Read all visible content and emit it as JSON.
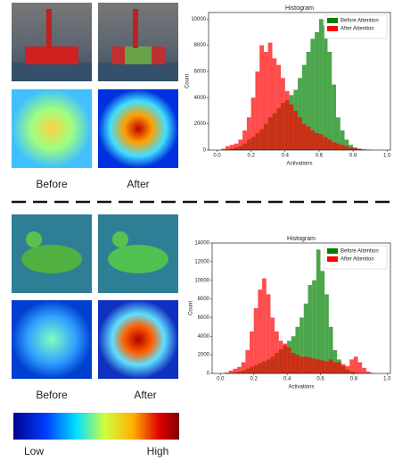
{
  "chart_data": [
    {
      "type": "histogram",
      "title": "Histogram",
      "x_label": "Activations",
      "y_label": "Count",
      "bins": [
        0,
        0.025,
        0.05,
        0.075,
        0.1,
        0.125,
        0.15,
        0.175,
        0.2,
        0.225,
        0.25,
        0.275,
        0.3,
        0.325,
        0.35,
        0.375,
        0.4,
        0.425,
        0.45,
        0.475,
        0.5,
        0.525,
        0.55,
        0.575,
        0.6,
        0.625,
        0.65,
        0.675,
        0.7,
        0.725,
        0.75,
        0.775,
        0.8,
        0.825,
        0.85,
        0.875,
        0.9,
        0.925,
        0.95,
        0.975,
        1
      ],
      "series": [
        {
          "name": "Before Attention",
          "color": "#008000",
          "values": [
            0,
            0,
            50,
            100,
            200,
            300,
            500,
            800,
            1000,
            1300,
            1600,
            2000,
            2500,
            2800,
            3200,
            3600,
            3800,
            4200,
            4600,
            5500,
            6500,
            7500,
            8500,
            9000,
            10000,
            9500,
            7500,
            5000,
            2500,
            1500,
            800,
            400,
            200,
            100,
            50,
            20,
            10,
            0,
            0,
            0
          ]
        },
        {
          "name": "After Attention",
          "color": "#ff0000",
          "values": [
            0,
            100,
            300,
            400,
            500,
            800,
            1500,
            2500,
            4000,
            6000,
            8000,
            7500,
            8200,
            7000,
            6500,
            5500,
            4500,
            3500,
            3000,
            2500,
            2000,
            1800,
            1500,
            1300,
            1200,
            1000,
            800,
            600,
            500,
            400,
            300,
            200,
            150,
            100,
            50,
            30,
            10,
            0,
            0,
            0
          ]
        }
      ],
      "alpha": 0.7,
      "legend": "upper right",
      "xlim": [
        -0.05,
        1.02
      ],
      "xticks": [
        {
          "value": 0,
          "label": "0.0"
        },
        0.2,
        0.4,
        0.6,
        0.8,
        {
          "value": 1,
          "label": "1.0"
        }
      ],
      "ylim": [
        0,
        10500
      ],
      "yticks": [
        0,
        2000,
        4000,
        6000,
        8000,
        10000
      ]
    },
    {
      "type": "histogram",
      "title": "Histogram",
      "x_label": "Activations",
      "y_label": "Count",
      "bins": [
        0,
        0.025,
        0.05,
        0.075,
        0.1,
        0.125,
        0.15,
        0.175,
        0.2,
        0.225,
        0.25,
        0.275,
        0.3,
        0.325,
        0.35,
        0.375,
        0.4,
        0.425,
        0.45,
        0.475,
        0.5,
        0.525,
        0.55,
        0.575,
        0.6,
        0.625,
        0.65,
        0.675,
        0.7,
        0.725,
        0.75,
        0.775,
        0.8,
        0.825,
        0.85,
        0.875,
        0.9,
        0.925,
        0.95,
        0.975,
        1
      ],
      "series": [
        {
          "name": "Before Attention",
          "color": "#008000",
          "values": [
            0,
            0,
            50,
            100,
            200,
            300,
            500,
            700,
            900,
            1100,
            1300,
            1500,
            1800,
            2200,
            2600,
            3000,
            3500,
            4000,
            5000,
            6000,
            7500,
            9500,
            10000,
            13300,
            11000,
            8500,
            5000,
            2500,
            1500,
            800,
            400,
            200,
            100,
            50,
            20,
            10,
            0,
            0,
            0,
            0
          ]
        },
        {
          "name": "After Attention",
          "color": "#ff0000",
          "values": [
            0,
            100,
            300,
            500,
            700,
            1200,
            2500,
            4500,
            7000,
            9000,
            10200,
            8500,
            6000,
            4500,
            3500,
            3200,
            2800,
            2200,
            2000,
            1800,
            1800,
            1700,
            1600,
            1500,
            1400,
            1300,
            1500,
            1200,
            1200,
            1000,
            800,
            1500,
            1800,
            1200,
            600,
            200,
            50,
            0,
            0,
            0
          ]
        }
      ],
      "alpha": 0.7,
      "legend": "upper right",
      "xlim": [
        -0.05,
        1.02
      ],
      "xticks": [
        {
          "value": 0,
          "label": "0.0"
        },
        0.2,
        0.4,
        0.6,
        0.8,
        {
          "value": 1,
          "label": "1.0"
        }
      ],
      "ylim": [
        0,
        14000
      ],
      "yticks": [
        0,
        2000,
        4000,
        6000,
        8000,
        10000,
        12000,
        14000
      ]
    }
  ],
  "figure": {
    "before_top": "Before",
    "after_top": "After",
    "before_bottom": "Before",
    "after_bottom": "After",
    "low": "Low",
    "high": "High"
  }
}
